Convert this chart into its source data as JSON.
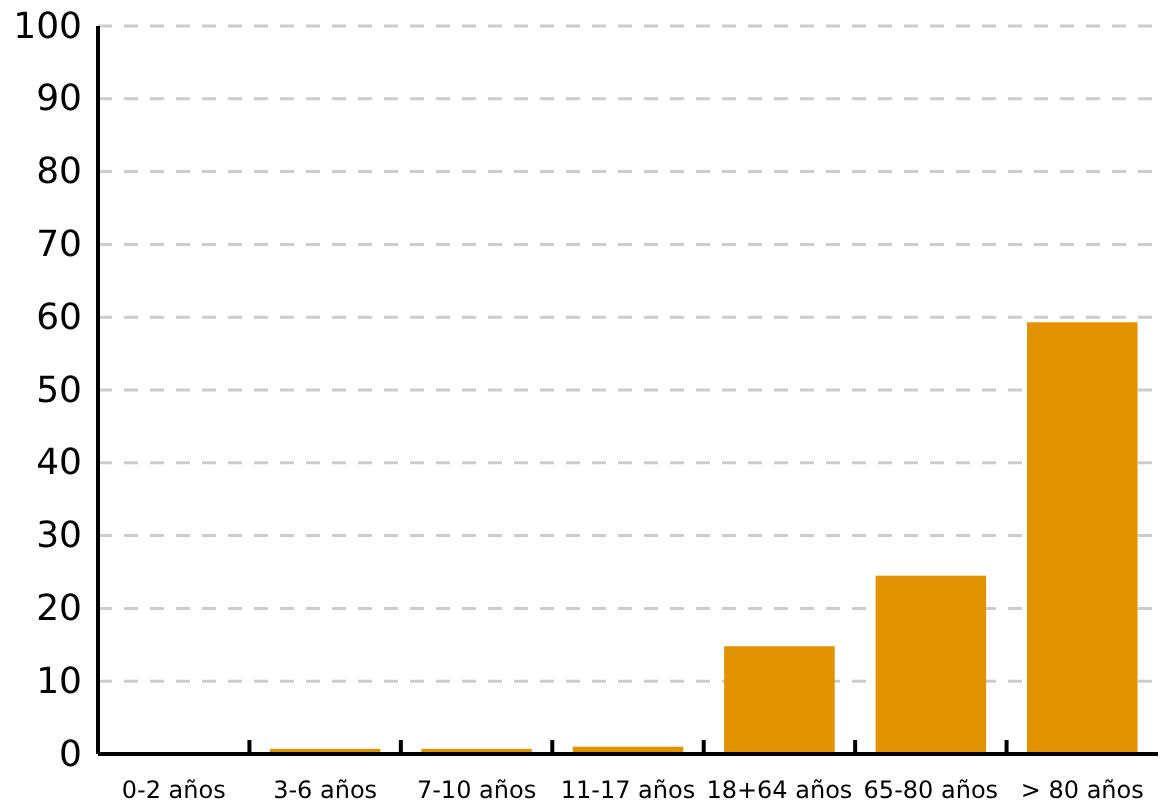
{
  "chart_data": {
    "type": "bar",
    "categories": [
      "0-2 años",
      "3-6 años",
      "7-10 años",
      "11-17 años",
      "18+64 años",
      "65-80 años",
      "> 80 años"
    ],
    "values": [
      0,
      0.7,
      0.7,
      1.0,
      14.8,
      24.5,
      59.3
    ],
    "color": "#e39300",
    "ylim": [
      0,
      100
    ],
    "yticks": [
      0,
      10,
      20,
      30,
      40,
      50,
      60,
      70,
      80,
      90,
      100
    ],
    "grid": "y"
  }
}
